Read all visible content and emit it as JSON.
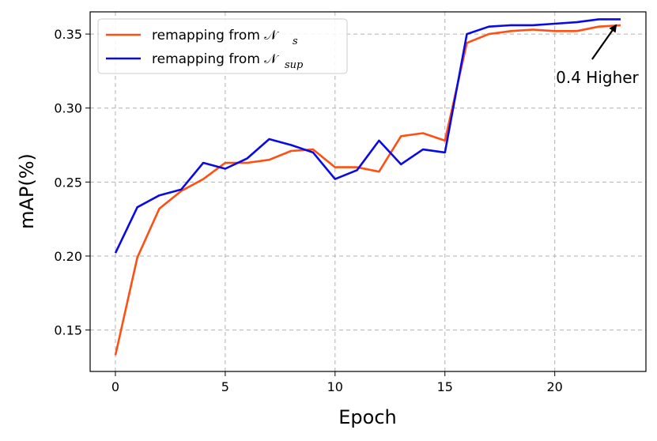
{
  "chart_data": {
    "type": "line",
    "title": "",
    "xlabel": "Epoch",
    "ylabel": "mAP(%)",
    "xlim": [
      -1.15,
      24.15
    ],
    "ylim": [
      0.122,
      0.365
    ],
    "xticks": [
      0,
      5,
      10,
      15,
      20
    ],
    "yticks": [
      0.15,
      0.2,
      0.25,
      0.3,
      0.35
    ],
    "xtick_labels": [
      "0",
      "5",
      "10",
      "15",
      "20"
    ],
    "ytick_labels": [
      "0.15",
      "0.20",
      "0.25",
      "0.30",
      "0.35"
    ],
    "grid": true,
    "legend_position": "top-left",
    "x": [
      0,
      1,
      2,
      3,
      4,
      5,
      6,
      7,
      8,
      9,
      10,
      11,
      12,
      13,
      14,
      15,
      16,
      17,
      18,
      19,
      20,
      21,
      22,
      23
    ],
    "series": [
      {
        "name": "remapping from 𝒩",
        "subscript": "s",
        "color": "#ff4f12",
        "values": [
          0.133,
          0.199,
          0.232,
          0.244,
          0.252,
          0.263,
          0.263,
          0.265,
          0.271,
          0.272,
          0.26,
          0.26,
          0.257,
          0.281,
          0.283,
          0.278,
          0.344,
          0.35,
          0.352,
          0.353,
          0.352,
          0.352,
          0.355,
          0.356
        ]
      },
      {
        "name": "remapping from 𝒩",
        "subscript": "sup",
        "color": "#0a0ae6",
        "values": [
          0.202,
          0.233,
          0.241,
          0.245,
          0.263,
          0.259,
          0.266,
          0.279,
          0.275,
          0.27,
          0.252,
          0.258,
          0.278,
          0.262,
          0.272,
          0.27,
          0.35,
          0.355,
          0.356,
          0.356,
          0.357,
          0.358,
          0.36,
          0.36
        ]
      }
    ],
    "annotations": [
      {
        "text": "0.4 Higher",
        "arrow_to": [
          23,
          0.358
        ],
        "text_at": [
          21,
          0.318
        ]
      }
    ]
  }
}
